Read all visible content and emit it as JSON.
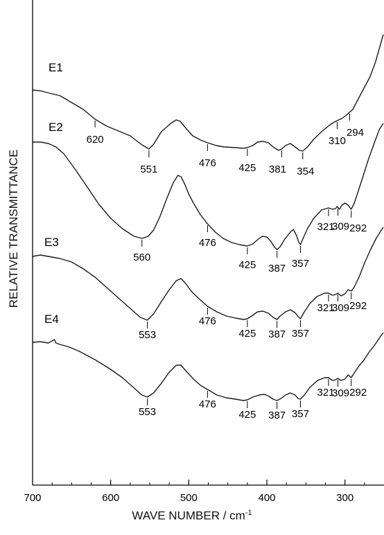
{
  "chart_data": {
    "type": "line",
    "xlabel": "WAVE NUMBER / cm",
    "xlabel_superscript": "-1",
    "ylabel": "RELATIVE  TRANSMITTANCE",
    "xlim": [
      700,
      250
    ],
    "x_ticks": [
      {
        "value": 700,
        "label": "700"
      },
      {
        "value": 600,
        "label": "600"
      },
      {
        "value": 500,
        "label": "500"
      },
      {
        "value": 400,
        "label": "400"
      },
      {
        "value": 300,
        "label": "300"
      }
    ],
    "x_minor_ticks": [
      675,
      650,
      625,
      575,
      550,
      525,
      475,
      450,
      425,
      375,
      350,
      325,
      275
    ],
    "y_ticks_visible": false,
    "grid": false,
    "legend": "none",
    "series": [
      {
        "name": "E1",
        "points": [
          [
            700,
            130
          ],
          [
            690,
            131
          ],
          [
            680,
            134
          ],
          [
            665,
            138
          ],
          [
            650,
            148
          ],
          [
            635,
            158
          ],
          [
            620,
            172
          ],
          [
            605,
            182
          ],
          [
            590,
            189
          ],
          [
            575,
            196
          ],
          [
            560,
            209
          ],
          [
            551,
            215
          ],
          [
            545,
            208
          ],
          [
            535,
            190
          ],
          [
            523,
            178
          ],
          [
            516,
            173
          ],
          [
            511,
            175
          ],
          [
            503,
            186
          ],
          [
            495,
            196
          ],
          [
            485,
            202
          ],
          [
            476,
            206
          ],
          [
            465,
            210
          ],
          [
            455,
            212
          ],
          [
            440,
            213
          ],
          [
            430,
            214
          ],
          [
            425,
            213
          ],
          [
            418,
            210
          ],
          [
            412,
            205
          ],
          [
            405,
            204
          ],
          [
            398,
            206
          ],
          [
            392,
            212
          ],
          [
            385,
            217
          ],
          [
            381,
            215
          ],
          [
            376,
            210
          ],
          [
            370,
            207
          ],
          [
            364,
            212
          ],
          [
            358,
            217
          ],
          [
            354,
            218
          ],
          [
            348,
            212
          ],
          [
            340,
            201
          ],
          [
            330,
            190
          ],
          [
            318,
            179
          ],
          [
            310,
            174
          ],
          [
            304,
            171
          ],
          [
            298,
            166
          ],
          [
            294,
            162
          ],
          [
            290,
            158
          ],
          [
            284,
            145
          ],
          [
            276,
            128
          ],
          [
            268,
            111
          ],
          [
            261,
            90
          ],
          [
            255,
            66
          ],
          [
            251,
            50
          ]
        ],
        "peaks": [
          {
            "label": "620",
            "x": 620
          },
          {
            "label": "551",
            "x": 551
          },
          {
            "label": "476",
            "x": 476
          },
          {
            "label": "425",
            "x": 425
          },
          {
            "label": "381",
            "x": 381
          },
          {
            "label": "354",
            "x": 354
          },
          {
            "label": "310",
            "x": 310
          },
          {
            "label": "294",
            "x": 294
          }
        ]
      },
      {
        "name": "E2",
        "points": [
          [
            700,
            205
          ],
          [
            690,
            205
          ],
          [
            680,
            207
          ],
          [
            670,
            212
          ],
          [
            660,
            222
          ],
          [
            645,
            245
          ],
          [
            630,
            270
          ],
          [
            615,
            295
          ],
          [
            600,
            315
          ],
          [
            585,
            330
          ],
          [
            570,
            341
          ],
          [
            560,
            344
          ],
          [
            552,
            341
          ],
          [
            545,
            332
          ],
          [
            537,
            313
          ],
          [
            528,
            286
          ],
          [
            520,
            264
          ],
          [
            514,
            253
          ],
          [
            510,
            255
          ],
          [
            505,
            266
          ],
          [
            500,
            280
          ],
          [
            494,
            293
          ],
          [
            485,
            310
          ],
          [
            476,
            323
          ],
          [
            466,
            335
          ],
          [
            456,
            344
          ],
          [
            445,
            350
          ],
          [
            435,
            353
          ],
          [
            425,
            355
          ],
          [
            418,
            352
          ],
          [
            412,
            346
          ],
          [
            406,
            341
          ],
          [
            400,
            342
          ],
          [
            395,
            348
          ],
          [
            390,
            357
          ],
          [
            387,
            360
          ],
          [
            383,
            356
          ],
          [
            377,
            345
          ],
          [
            370,
            335
          ],
          [
            366,
            331
          ],
          [
            362,
            340
          ],
          [
            359,
            350
          ],
          [
            357,
            353
          ],
          [
            354,
            345
          ],
          [
            348,
            330
          ],
          [
            340,
            315
          ],
          [
            330,
            303
          ],
          [
            321,
            300
          ],
          [
            316,
            302
          ],
          [
            312,
            301
          ],
          [
            310,
            298
          ],
          [
            307,
            302
          ],
          [
            304,
            296
          ],
          [
            300,
            293
          ],
          [
            296,
            296
          ],
          [
            292,
            302
          ],
          [
            288,
            293
          ],
          [
            283,
            276
          ],
          [
            277,
            255
          ],
          [
            270,
            230
          ],
          [
            262,
            205
          ],
          [
            256,
            187
          ],
          [
            251,
            178
          ]
        ],
        "peaks": [
          {
            "label": "560",
            "x": 560
          },
          {
            "label": "476",
            "x": 476
          },
          {
            "label": "425",
            "x": 425
          },
          {
            "label": "387",
            "x": 387
          },
          {
            "label": "357",
            "x": 357
          },
          {
            "label": "321",
            "x": 321
          },
          {
            "label": "309",
            "x": 309
          },
          {
            "label": "292",
            "x": 292
          }
        ]
      },
      {
        "name": "E3",
        "points": [
          [
            700,
            370
          ],
          [
            690,
            368
          ],
          [
            680,
            370
          ],
          [
            665,
            373
          ],
          [
            650,
            378
          ],
          [
            635,
            388
          ],
          [
            620,
            400
          ],
          [
            605,
            415
          ],
          [
            590,
            430
          ],
          [
            575,
            445
          ],
          [
            562,
            458
          ],
          [
            553,
            462
          ],
          [
            545,
            453
          ],
          [
            535,
            435
          ],
          [
            525,
            418
          ],
          [
            516,
            405
          ],
          [
            510,
            402
          ],
          [
            504,
            409
          ],
          [
            497,
            420
          ],
          [
            488,
            430
          ],
          [
            476,
            442
          ],
          [
            464,
            450
          ],
          [
            452,
            456
          ],
          [
            440,
            459
          ],
          [
            430,
            461
          ],
          [
            425,
            460
          ],
          [
            418,
            455
          ],
          [
            412,
            450
          ],
          [
            405,
            449
          ],
          [
            398,
            452
          ],
          [
            392,
            458
          ],
          [
            387,
            461
          ],
          [
            383,
            456
          ],
          [
            376,
            450
          ],
          [
            370,
            447
          ],
          [
            364,
            451
          ],
          [
            359,
            458
          ],
          [
            357,
            460
          ],
          [
            352,
            450
          ],
          [
            345,
            438
          ],
          [
            336,
            428
          ],
          [
            326,
            423
          ],
          [
            321,
            423
          ],
          [
            316,
            426
          ],
          [
            312,
            425
          ],
          [
            309,
            423
          ],
          [
            305,
            427
          ],
          [
            300,
            424
          ],
          [
            296,
            418
          ],
          [
            292,
            420
          ],
          [
            288,
            414
          ],
          [
            282,
            400
          ],
          [
            275,
            380
          ],
          [
            268,
            362
          ],
          [
            260,
            344
          ],
          [
            254,
            333
          ],
          [
            251,
            328
          ]
        ],
        "peaks": [
          {
            "label": "553",
            "x": 553
          },
          {
            "label": "476",
            "x": 476
          },
          {
            "label": "425",
            "x": 425
          },
          {
            "label": "387",
            "x": 387
          },
          {
            "label": "357",
            "x": 357
          },
          {
            "label": "321",
            "x": 321
          },
          {
            "label": "309",
            "x": 309
          },
          {
            "label": "292",
            "x": 292
          }
        ]
      },
      {
        "name": "E4",
        "points": [
          [
            700,
            494
          ],
          [
            690,
            493
          ],
          [
            680,
            495
          ],
          [
            672,
            490
          ],
          [
            670,
            495
          ],
          [
            665,
            497
          ],
          [
            655,
            500
          ],
          [
            640,
            507
          ],
          [
            620,
            519
          ],
          [
            600,
            533
          ],
          [
            585,
            545
          ],
          [
            570,
            560
          ],
          [
            560,
            570
          ],
          [
            553,
            573
          ],
          [
            545,
            567
          ],
          [
            535,
            553
          ],
          [
            525,
            537
          ],
          [
            516,
            527
          ],
          [
            510,
            527
          ],
          [
            503,
            536
          ],
          [
            494,
            547
          ],
          [
            485,
            556
          ],
          [
            476,
            562
          ],
          [
            464,
            570
          ],
          [
            452,
            574
          ],
          [
            440,
            576
          ],
          [
            430,
            578
          ],
          [
            425,
            577
          ],
          [
            418,
            573
          ],
          [
            410,
            570
          ],
          [
            403,
            569
          ],
          [
            397,
            572
          ],
          [
            392,
            576
          ],
          [
            387,
            578
          ],
          [
            382,
            575
          ],
          [
            376,
            570
          ],
          [
            370,
            567
          ],
          [
            364,
            570
          ],
          [
            360,
            575
          ],
          [
            357,
            576
          ],
          [
            352,
            570
          ],
          [
            345,
            559
          ],
          [
            335,
            549
          ],
          [
            326,
            545
          ],
          [
            321,
            545
          ],
          [
            316,
            549
          ],
          [
            312,
            548
          ],
          [
            309,
            546
          ],
          [
            305,
            549
          ],
          [
            300,
            547
          ],
          [
            296,
            541
          ],
          [
            292,
            545
          ],
          [
            288,
            538
          ],
          [
            282,
            528
          ],
          [
            276,
            520
          ],
          [
            269,
            508
          ],
          [
            262,
            498
          ],
          [
            256,
            488
          ],
          [
            251,
            480
          ]
        ],
        "peaks": [
          {
            "label": "553",
            "x": 553
          },
          {
            "label": "476",
            "x": 476
          },
          {
            "label": "425",
            "x": 425
          },
          {
            "label": "387",
            "x": 387
          },
          {
            "label": "357",
            "x": 357
          },
          {
            "label": "321",
            "x": 321
          },
          {
            "label": "309",
            "x": 309
          },
          {
            "label": "292",
            "x": 292
          }
        ]
      }
    ]
  }
}
